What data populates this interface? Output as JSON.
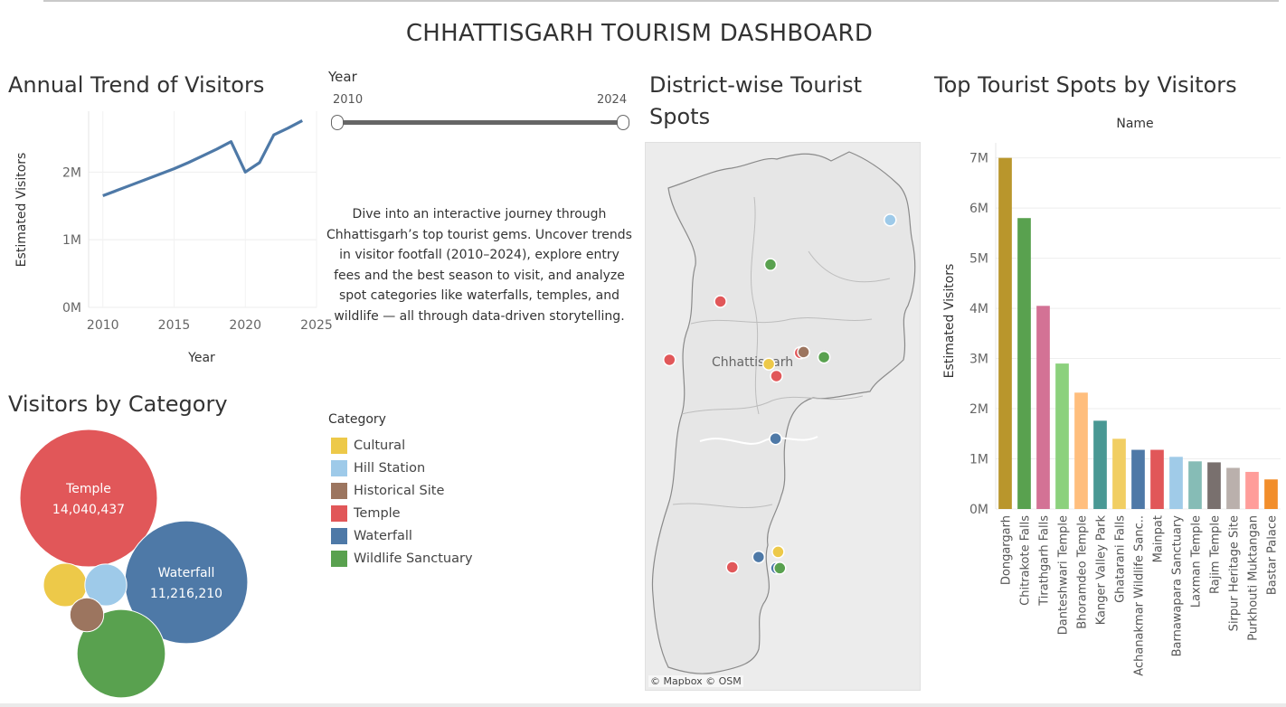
{
  "dashboard": {
    "title": "CHHATTISGARH TOURISM DASHBOARD"
  },
  "colors": {
    "Cultural": "#edc949",
    "Hill Station": "#9ecae9",
    "Historical Site": "#9c755f",
    "Temple": "#e15759",
    "Waterfall": "#4e79a7",
    "Wildlife Sanctuary": "#59a14f"
  },
  "annual_trend": {
    "title": "Annual Trend of Visitors",
    "chart_data": {
      "type": "line",
      "xlabel": "Year",
      "ylabel": "Estimated Visitors",
      "x_ticks": [
        2010,
        2015,
        2020,
        2025
      ],
      "y_ticks": [
        {
          "v": 0,
          "label": "0M"
        },
        {
          "v": 1000000,
          "label": "1M"
        },
        {
          "v": 2000000,
          "label": "2M"
        }
      ],
      "xlim": [
        2009,
        2025
      ],
      "ylim": [
        0,
        2900000
      ],
      "grid": true,
      "series": [
        {
          "color": "#4e79a7",
          "x": [
            2010,
            2011,
            2012,
            2013,
            2014,
            2015,
            2016,
            2017,
            2018,
            2019,
            2020,
            2021,
            2022,
            2023,
            2024
          ],
          "values": [
            1650000,
            1730000,
            1810000,
            1890000,
            1970000,
            2050000,
            2140000,
            2240000,
            2340000,
            2450000,
            2000000,
            2140000,
            2550000,
            2650000,
            2760000
          ]
        }
      ]
    }
  },
  "year_filter": {
    "label": "Year",
    "min_label": "2010",
    "max_label": "2024"
  },
  "story_text": "Dive into an interactive journey through Chhattisgarh’s top tourist gems. Uncover trends in visitor footfall (2010–2024), explore entry fees and the best season to visit, and analyze spot categories like waterfalls, temples, and wildlife — all through data-driven storytelling.",
  "legend": {
    "title": "Category",
    "items": [
      "Cultural",
      "Hill Station",
      "Historical Site",
      "Temple",
      "Waterfall",
      "Wildlife Sanctuary"
    ]
  },
  "category_bubbles": {
    "title": "Visitors by Category",
    "chart_data": {
      "type": "bubble",
      "items": [
        {
          "category": "Temple",
          "value": 14040437,
          "label": "Temple",
          "value_label": "14,040,437"
        },
        {
          "category": "Waterfall",
          "value": 11216210,
          "label": "Waterfall",
          "value_label": "11,216,210"
        },
        {
          "category": "Wildlife Sanctuary",
          "value": 5800000,
          "label": "",
          "value_label": ""
        },
        {
          "category": "Cultural",
          "value": 1400000,
          "label": "",
          "value_label": ""
        },
        {
          "category": "Hill Station",
          "value": 1300000,
          "label": "",
          "value_label": ""
        },
        {
          "category": "Historical Site",
          "value": 850000,
          "label": "",
          "value_label": ""
        }
      ]
    }
  },
  "district_map": {
    "title": "District-wise Tourist Spots",
    "region_label": "Chhattisgarh",
    "attribution": "© Mapbox  © OSM",
    "points": [
      {
        "category": "Hill Station",
        "lat": 23.3,
        "lon": 83.58
      },
      {
        "category": "Wildlife Sanctuary",
        "lat": 22.78,
        "lon": 82.17
      },
      {
        "category": "Temple",
        "lat": 22.35,
        "lon": 81.58
      },
      {
        "category": "Temple",
        "lat": 21.75,
        "lon": 82.52
      },
      {
        "category": "Historical Site",
        "lat": 21.76,
        "lon": 82.56
      },
      {
        "category": "Wildlife Sanctuary",
        "lat": 21.7,
        "lon": 82.8
      },
      {
        "category": "Temple",
        "lat": 21.67,
        "lon": 80.98
      },
      {
        "category": "Cultural",
        "lat": 21.62,
        "lon": 82.15
      },
      {
        "category": "Temple",
        "lat": 21.48,
        "lon": 82.24
      },
      {
        "category": "Waterfall",
        "lat": 20.75,
        "lon": 82.23
      },
      {
        "category": "Cultural",
        "lat": 19.43,
        "lon": 82.26
      },
      {
        "category": "Waterfall",
        "lat": 19.37,
        "lon": 82.03
      },
      {
        "category": "Waterfall",
        "lat": 19.24,
        "lon": 82.24
      },
      {
        "category": "Wildlife Sanctuary",
        "lat": 19.24,
        "lon": 82.28
      },
      {
        "category": "Temple",
        "lat": 19.25,
        "lon": 81.72
      }
    ]
  },
  "top_spots": {
    "title": "Top Tourist Spots by Visitors",
    "chart_data": {
      "type": "bar",
      "column_header": "Name",
      "ylabel": "Estimated Visitors",
      "ylim": [
        0,
        7300000
      ],
      "y_ticks": [
        {
          "v": 0,
          "label": "0M"
        },
        {
          "v": 1000000,
          "label": "1M"
        },
        {
          "v": 2000000,
          "label": "2M"
        },
        {
          "v": 3000000,
          "label": "3M"
        },
        {
          "v": 4000000,
          "label": "4M"
        },
        {
          "v": 5000000,
          "label": "5M"
        },
        {
          "v": 6000000,
          "label": "6M"
        },
        {
          "v": 7000000,
          "label": "7M"
        }
      ],
      "grid": true,
      "bars": [
        {
          "name": "Dongargarh",
          "value": 7000000,
          "color": "#b9962c"
        },
        {
          "name": "Chitrakote Falls",
          "value": 5800000,
          "color": "#59a14f"
        },
        {
          "name": "Tirathgarh Falls",
          "value": 4050000,
          "color": "#d37295"
        },
        {
          "name": "Danteshwari Temple",
          "value": 2900000,
          "color": "#8cd17d"
        },
        {
          "name": "Bhoramdeo Temple",
          "value": 2320000,
          "color": "#ffbe7d"
        },
        {
          "name": "Kanger Valley Park",
          "value": 1760000,
          "color": "#499894"
        },
        {
          "name": "Ghatarani Falls",
          "value": 1400000,
          "color": "#f1ce63"
        },
        {
          "name": "Achanakmar Wildlife Sanc..",
          "value": 1180000,
          "color": "#4e79a7"
        },
        {
          "name": "Mainpat",
          "value": 1180000,
          "color": "#e15759"
        },
        {
          "name": "Barnawapara Sanctuary",
          "value": 1040000,
          "color": "#a0cbe8"
        },
        {
          "name": "Laxman Temple",
          "value": 950000,
          "color": "#86bcb6"
        },
        {
          "name": "Rajim Temple",
          "value": 930000,
          "color": "#79706e"
        },
        {
          "name": "Sirpur Heritage Site",
          "value": 820000,
          "color": "#bab0ac"
        },
        {
          "name": "Purkhouti Muktangan",
          "value": 740000,
          "color": "#ff9d9a"
        },
        {
          "name": "Bastar Palace",
          "value": 590000,
          "color": "#f28e2b"
        }
      ]
    }
  }
}
